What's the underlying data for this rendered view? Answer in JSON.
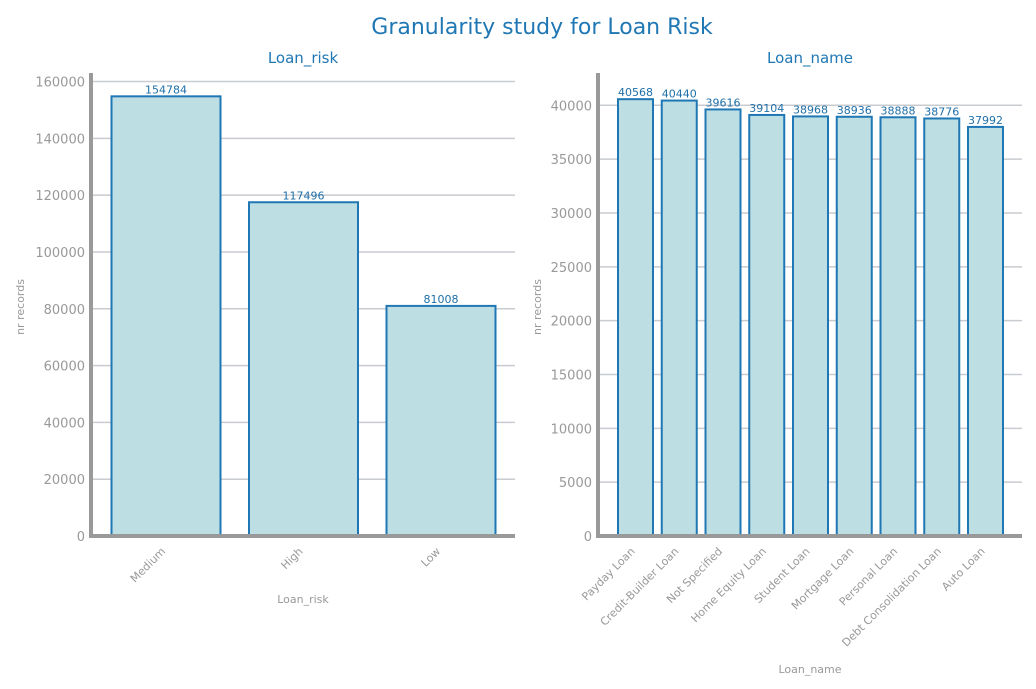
{
  "figure_title": "Granularity study for Loan Risk",
  "chart_data": [
    {
      "type": "bar",
      "title": "Loan_risk",
      "xlabel": "Loan_risk",
      "ylabel": "nr records",
      "categories": [
        "Medium",
        "High",
        "Low"
      ],
      "values": [
        154784,
        117496,
        81008
      ],
      "ylim": [
        0,
        163000
      ],
      "yticks": [
        0,
        20000,
        40000,
        60000,
        80000,
        100000,
        120000,
        140000,
        160000
      ],
      "grid": true
    },
    {
      "type": "bar",
      "title": "Loan_name",
      "xlabel": "Loan_name",
      "ylabel": "nr records",
      "categories": [
        "Payday Loan",
        "Credit-Builder Loan",
        "Not Specified",
        "Home Equity Loan",
        "Student Loan",
        "Mortgage Loan",
        "Personal Loan",
        "Debt Consolidation Loan",
        "Auto Loan"
      ],
      "values": [
        40568,
        40440,
        39616,
        39104,
        38968,
        38936,
        38888,
        38776,
        37992
      ],
      "ylim": [
        0,
        43000
      ],
      "yticks": [
        0,
        5000,
        10000,
        15000,
        20000,
        25000,
        30000,
        35000,
        40000
      ],
      "grid": true
    }
  ],
  "colors": {
    "bar_fill": "#bddee3",
    "bar_edge": "#1f77b4",
    "title": "#1f77b4",
    "text_muted": "#999999"
  }
}
